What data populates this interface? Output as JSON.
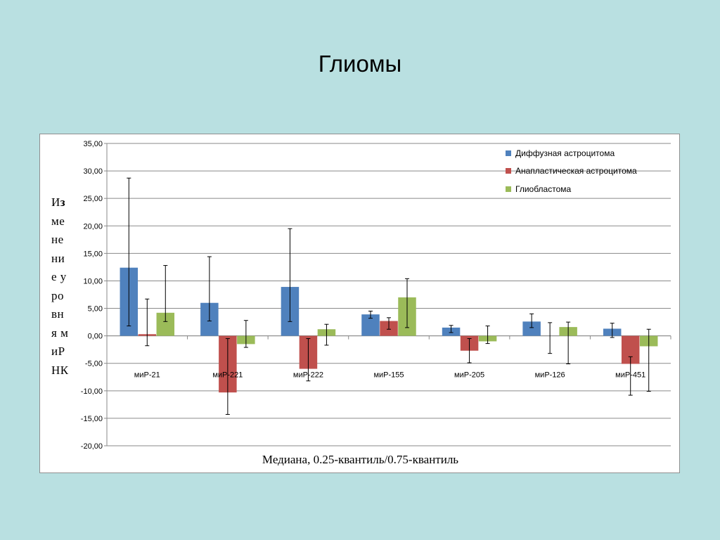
{
  "slide": {
    "title": "Глиомы"
  },
  "chart_data": {
    "type": "bar",
    "ylabel": "Изменение уровня миРНК",
    "xlabel": "Медиана, 0.25-квантиль/0.75-квантиль",
    "ylim": [
      -20,
      35
    ],
    "ytick_step": 5,
    "ytick_labels": [
      "-20,00",
      "-15,00",
      "-10,00",
      "-5,00",
      "0,00",
      "5,00",
      "10,00",
      "15,00",
      "20,00",
      "25,00",
      "30,00",
      "35,00"
    ],
    "grid": true,
    "legend_position": "top-right",
    "categories": [
      "миР-21",
      "миР-221",
      "миР-222",
      "миР-155",
      "миР-205",
      "миР-126",
      "миР-451"
    ],
    "series": [
      {
        "name": "Диффузная астроцитома",
        "color": "#4f81bd",
        "values": [
          12.4,
          6.0,
          8.9,
          3.9,
          1.5,
          2.6,
          1.3
        ],
        "lower": [
          1.8,
          2.7,
          2.6,
          3.2,
          0.6,
          1.5,
          -0.3
        ],
        "upper": [
          28.7,
          14.4,
          19.5,
          4.5,
          1.9,
          4.0,
          2.3
        ]
      },
      {
        "name": "Анапластическая астроцитома",
        "color": "#c0504d",
        "values": [
          0.3,
          -10.3,
          -6.0,
          2.7,
          -2.7,
          null,
          -5.1
        ],
        "lower": [
          -1.8,
          -14.3,
          -8.2,
          1.2,
          -4.9,
          -3.2,
          -10.8
        ],
        "upper": [
          6.7,
          -0.5,
          -0.5,
          3.3,
          -0.5,
          2.4,
          -3.8
        ]
      },
      {
        "name": "Глиобластома",
        "color": "#9bbb59",
        "values": [
          4.2,
          -1.5,
          1.2,
          7.0,
          -1.0,
          1.6,
          -1.9
        ],
        "lower": [
          2.6,
          -2.1,
          -1.7,
          1.5,
          -1.4,
          -5.1,
          -10.1
        ],
        "upper": [
          12.8,
          2.8,
          2.1,
          10.4,
          1.8,
          2.5,
          1.2
        ]
      }
    ]
  }
}
